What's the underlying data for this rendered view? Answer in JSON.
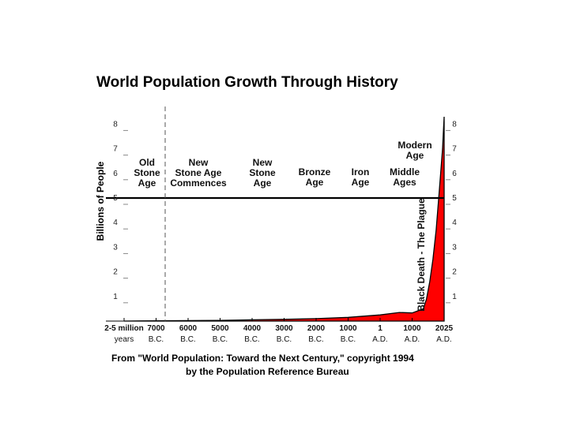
{
  "chart_data": {
    "type": "area",
    "title": "World Population Growth Through History",
    "ylabel": "Billions of People",
    "ylim": [
      0,
      8.5
    ],
    "yticks": [
      "1",
      "2",
      "3",
      "4",
      "5",
      "6",
      "7",
      "8"
    ],
    "fill_color": "#ff0000",
    "x_labels": [
      {
        "line1": "2-5 million",
        "line2": "years"
      },
      {
        "line1": "7000",
        "line2": "B.C."
      },
      {
        "line1": "6000",
        "line2": "B.C."
      },
      {
        "line1": "5000",
        "line2": "B.C."
      },
      {
        "line1": "4000",
        "line2": "B.C."
      },
      {
        "line1": "3000",
        "line2": "B.C."
      },
      {
        "line1": "2000",
        "line2": "B.C."
      },
      {
        "line1": "1000",
        "line2": "B.C."
      },
      {
        "line1": "1",
        "line2": "A.D."
      },
      {
        "line1": "1000",
        "line2": "A.D."
      },
      {
        "line1": "2025",
        "line2": "A.D."
      }
    ],
    "eras": [
      {
        "lines": [
          "Old",
          "Stone",
          "Age"
        ]
      },
      {
        "lines": [
          "New",
          "Stone Age",
          "Commences"
        ]
      },
      {
        "lines": [
          "New",
          "Stone",
          "Age"
        ]
      },
      {
        "lines": [
          "Bronze",
          "Age"
        ]
      },
      {
        "lines": [
          "Iron",
          "Age"
        ]
      },
      {
        "lines": [
          "Middle",
          "Ages"
        ]
      },
      {
        "lines": [
          "Modern",
          "Age"
        ]
      }
    ],
    "annotation_plague": "Black Death - The Plague",
    "series": [
      {
        "x_index": [
          0,
          0.5,
          1,
          2,
          3,
          4,
          5,
          6,
          7,
          8,
          8.6,
          9,
          9.25,
          9.35,
          9.45,
          9.55,
          9.65,
          9.75,
          9.85,
          9.95,
          10
        ],
        "values": [
          0,
          0.005,
          0.01,
          0.02,
          0.03,
          0.05,
          0.07,
          0.1,
          0.15,
          0.25,
          0.35,
          0.33,
          0.45,
          0.5,
          0.9,
          1.6,
          2.5,
          3.7,
          5.3,
          7.0,
          8.3
        ]
      }
    ]
  },
  "source": {
    "line1": "From \"World Population: Toward the Next Century,\" copyright 1994",
    "line2": "by the Population Reference Bureau"
  }
}
